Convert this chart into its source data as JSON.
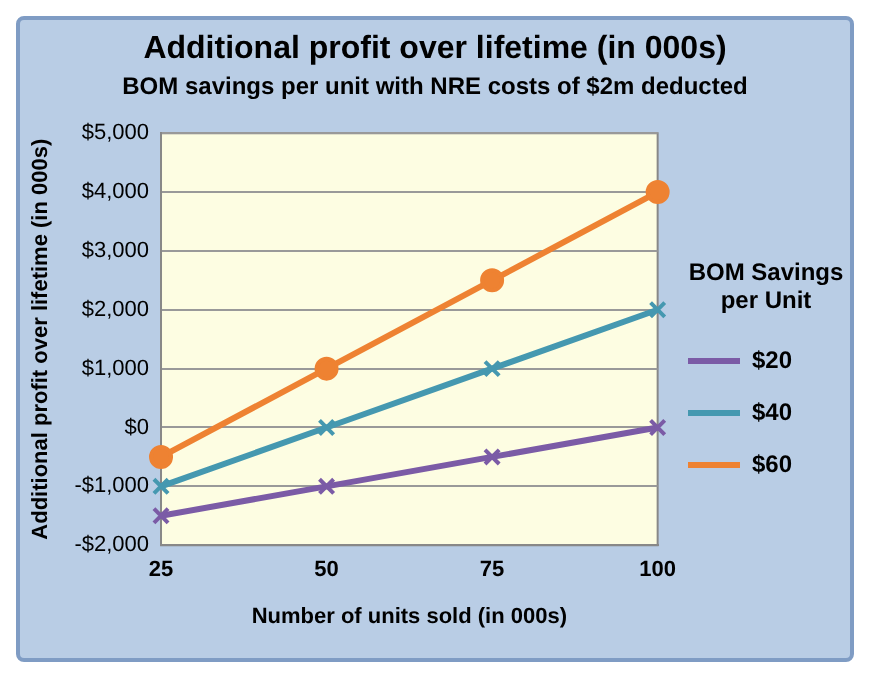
{
  "chart_data": {
    "type": "line",
    "title": "Additional profit over lifetime (in 000s)",
    "subtitle": "BOM savings per unit with NRE costs of  $2m deducted",
    "xlabel": "Number of units sold (in 000s)",
    "ylabel": "Additional profit over lifetime (in 000s)",
    "legend_title": "BOM Savings per Unit",
    "categories": [
      "25",
      "50",
      "75",
      "100"
    ],
    "series": [
      {
        "name": "$20",
        "color": "#7b5ba6",
        "marker": "cross",
        "values": [
          -1500,
          -1000,
          -500,
          0
        ]
      },
      {
        "name": "$40",
        "color": "#4598b0",
        "marker": "cross",
        "values": [
          -1000,
          0,
          1000,
          2000
        ]
      },
      {
        "name": "$60",
        "color": "#ee8232",
        "marker": "circle",
        "values": [
          -500,
          1000,
          2500,
          4000
        ]
      }
    ],
    "ylim": [
      -2000,
      5000
    ],
    "yticks": [
      {
        "value": -2000,
        "label": "-$2,000"
      },
      {
        "value": -1000,
        "label": "-$1,000"
      },
      {
        "value": 0,
        "label": "$0"
      },
      {
        "value": 1000,
        "label": "$1,000"
      },
      {
        "value": 2000,
        "label": "$2,000"
      },
      {
        "value": 3000,
        "label": "$3,000"
      },
      {
        "value": 4000,
        "label": "$4,000"
      },
      {
        "value": 5000,
        "label": "$5,000"
      }
    ],
    "grid": "y",
    "legend": "right",
    "line_style": "solid"
  }
}
